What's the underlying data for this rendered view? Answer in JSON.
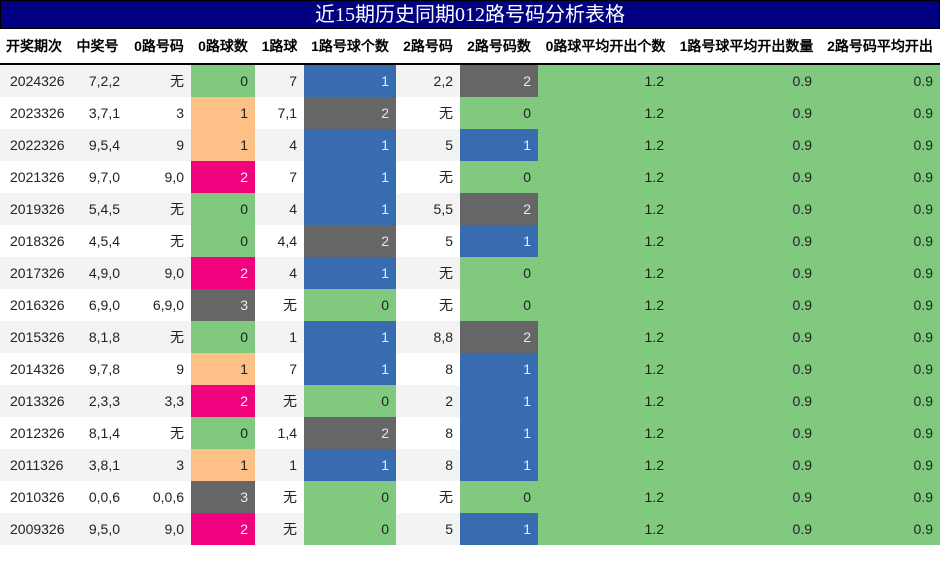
{
  "title": "近15期历史同期012路号码分析表格",
  "colors": {
    "title_bg": "#000080",
    "green": "#80c97f",
    "orange": "#fdc086",
    "magenta": "#f0027f",
    "gray": "#666666",
    "blue": "#386cb0"
  },
  "headers": [
    "开奖期次",
    "中奖号",
    "0路号码",
    "0路球数",
    "1路球",
    "1路号球个数",
    "2路号码",
    "2路号码数",
    "0路球平均开出个数",
    "1路号球平均开出数量",
    "2路号码平均开出"
  ],
  "rows": [
    {
      "period": "2024326",
      "number": "7,2,2",
      "r0": "无",
      "r0c": "0",
      "r1": "7",
      "r1c": "1",
      "r2": "2,2",
      "r2c": "2",
      "avg0": "1.2",
      "avg1": "0.9",
      "avg2": "0.9"
    },
    {
      "period": "2023326",
      "number": "3,7,1",
      "r0": "3",
      "r0c": "1",
      "r1": "7,1",
      "r1c": "2",
      "r2": "无",
      "r2c": "0",
      "avg0": "1.2",
      "avg1": "0.9",
      "avg2": "0.9"
    },
    {
      "period": "2022326",
      "number": "9,5,4",
      "r0": "9",
      "r0c": "1",
      "r1": "4",
      "r1c": "1",
      "r2": "5",
      "r2c": "1",
      "avg0": "1.2",
      "avg1": "0.9",
      "avg2": "0.9"
    },
    {
      "period": "2021326",
      "number": "9,7,0",
      "r0": "9,0",
      "r0c": "2",
      "r1": "7",
      "r1c": "1",
      "r2": "无",
      "r2c": "0",
      "avg0": "1.2",
      "avg1": "0.9",
      "avg2": "0.9"
    },
    {
      "period": "2019326",
      "number": "5,4,5",
      "r0": "无",
      "r0c": "0",
      "r1": "4",
      "r1c": "1",
      "r2": "5,5",
      "r2c": "2",
      "avg0": "1.2",
      "avg1": "0.9",
      "avg2": "0.9"
    },
    {
      "period": "2018326",
      "number": "4,5,4",
      "r0": "无",
      "r0c": "0",
      "r1": "4,4",
      "r1c": "2",
      "r2": "5",
      "r2c": "1",
      "avg0": "1.2",
      "avg1": "0.9",
      "avg2": "0.9"
    },
    {
      "period": "2017326",
      "number": "4,9,0",
      "r0": "9,0",
      "r0c": "2",
      "r1": "4",
      "r1c": "1",
      "r2": "无",
      "r2c": "0",
      "avg0": "1.2",
      "avg1": "0.9",
      "avg2": "0.9"
    },
    {
      "period": "2016326",
      "number": "6,9,0",
      "r0": "6,9,0",
      "r0c": "3",
      "r1": "无",
      "r1c": "0",
      "r2": "无",
      "r2c": "0",
      "avg0": "1.2",
      "avg1": "0.9",
      "avg2": "0.9"
    },
    {
      "period": "2015326",
      "number": "8,1,8",
      "r0": "无",
      "r0c": "0",
      "r1": "1",
      "r1c": "1",
      "r2": "8,8",
      "r2c": "2",
      "avg0": "1.2",
      "avg1": "0.9",
      "avg2": "0.9"
    },
    {
      "period": "2014326",
      "number": "9,7,8",
      "r0": "9",
      "r0c": "1",
      "r1": "7",
      "r1c": "1",
      "r2": "8",
      "r2c": "1",
      "avg0": "1.2",
      "avg1": "0.9",
      "avg2": "0.9"
    },
    {
      "period": "2013326",
      "number": "2,3,3",
      "r0": "3,3",
      "r0c": "2",
      "r1": "无",
      "r1c": "0",
      "r2": "2",
      "r2c": "1",
      "avg0": "1.2",
      "avg1": "0.9",
      "avg2": "0.9"
    },
    {
      "period": "2012326",
      "number": "8,1,4",
      "r0": "无",
      "r0c": "0",
      "r1": "1,4",
      "r1c": "2",
      "r2": "8",
      "r2c": "1",
      "avg0": "1.2",
      "avg1": "0.9",
      "avg2": "0.9"
    },
    {
      "period": "2011326",
      "number": "3,8,1",
      "r0": "3",
      "r0c": "1",
      "r1": "1",
      "r1c": "1",
      "r2": "8",
      "r2c": "1",
      "avg0": "1.2",
      "avg1": "0.9",
      "avg2": "0.9"
    },
    {
      "period": "2010326",
      "number": "0,0,6",
      "r0": "0,0,6",
      "r0c": "3",
      "r1": "无",
      "r1c": "0",
      "r2": "无",
      "r2c": "0",
      "avg0": "1.2",
      "avg1": "0.9",
      "avg2": "0.9"
    },
    {
      "period": "2009326",
      "number": "9,5,0",
      "r0": "9,0",
      "r0c": "2",
      "r1": "无",
      "r1c": "0",
      "r2": "5",
      "r2c": "1",
      "avg0": "1.2",
      "avg1": "0.9",
      "avg2": "0.9"
    }
  ]
}
